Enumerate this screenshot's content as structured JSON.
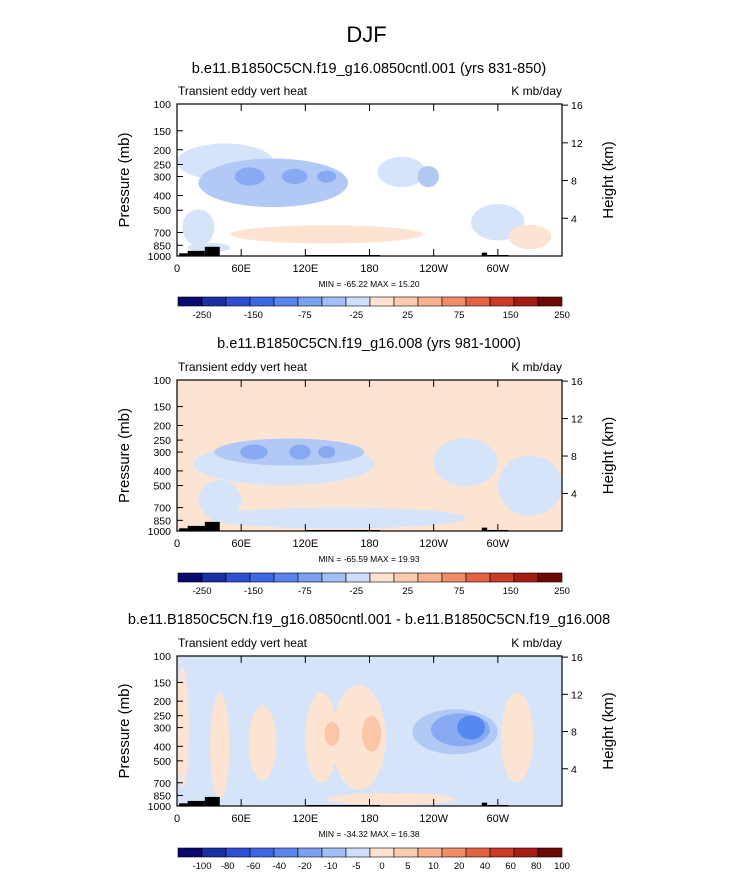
{
  "page_title": "DJF",
  "colors": {
    "lat_negative": [
      "#0a0a6e",
      "#1a33b5",
      "#3366e6",
      "#5588f0",
      "#88aaf2",
      "#b3c9f5",
      "#d6e4fa"
    ],
    "lat_positive": [
      "#fde4d2",
      "#fbc6a8",
      "#f59e7c",
      "#ea6e4e",
      "#d63c2a",
      "#a91c12",
      "#6e0a06"
    ],
    "land": "#000000"
  },
  "chart_data": [
    {
      "type": "heatmap",
      "title": "b.e11.B1850C5CN.f19_g16.0850cntl.001 (yrs 831-850)",
      "left_label": "Transient eddy vert heat",
      "right_label": "K mb/day",
      "ylabel": "Pressure (mb)",
      "ylabel_right": "Height (km)",
      "xticks": [
        "0",
        "60E",
        "120E",
        "180",
        "120W",
        "60W"
      ],
      "yticks": [
        "100",
        "150",
        "200",
        "250",
        "300",
        "400",
        "500",
        "700",
        "850",
        "1000"
      ],
      "height_ticks": [
        "16",
        "12",
        "8",
        "4"
      ],
      "stats": "MIN = -65.22  MAX = 15.20",
      "colorbar": [
        "-250",
        "-150",
        "-75",
        "-25",
        "25",
        "75",
        "150",
        "250"
      ],
      "background_level": 0,
      "blobs": [
        {
          "lon": 45,
          "p": 240,
          "w": 90,
          "hp": 1.2,
          "level": -1
        },
        {
          "lon": 90,
          "p": 330,
          "w": 140,
          "hp": 1.6,
          "level": -2
        },
        {
          "lon": 68,
          "p": 300,
          "w": 28,
          "hp": 0.6,
          "level": -3
        },
        {
          "lon": 110,
          "p": 300,
          "w": 24,
          "hp": 0.5,
          "level": -3
        },
        {
          "lon": 140,
          "p": 300,
          "w": 18,
          "hp": 0.4,
          "level": -3
        },
        {
          "lon": 210,
          "p": 280,
          "w": 45,
          "hp": 1.0,
          "level": -1
        },
        {
          "lon": 235,
          "p": 300,
          "w": 20,
          "hp": 0.7,
          "level": -2
        },
        {
          "lon": 300,
          "p": 600,
          "w": 50,
          "hp": 1.2,
          "level": -1
        },
        {
          "lon": 20,
          "p": 650,
          "w": 30,
          "hp": 1.2,
          "level": -1
        },
        {
          "lon": 140,
          "p": 720,
          "w": 180,
          "hp": 0.6,
          "level": 1
        },
        {
          "lon": 330,
          "p": 750,
          "w": 40,
          "hp": 0.8,
          "level": 1
        },
        {
          "lon": 30,
          "p": 880,
          "w": 40,
          "hp": 0.3,
          "level": -1
        }
      ],
      "land": [
        {
          "lon0": 2,
          "lon1": 10,
          "p0": 960
        },
        {
          "lon0": 10,
          "lon1": 26,
          "p0": 925
        },
        {
          "lon0": 26,
          "lon1": 40,
          "p0": 870
        },
        {
          "lon0": 120,
          "lon1": 190,
          "p0": 985
        },
        {
          "lon0": 285,
          "lon1": 290,
          "p0": 950
        },
        {
          "lon0": 290,
          "lon1": 310,
          "p0": 985
        }
      ]
    },
    {
      "type": "heatmap",
      "title": "b.e11.B1850C5CN.f19_g16.008 (yrs 981-1000)",
      "left_label": "Transient eddy vert heat",
      "right_label": "K mb/day",
      "ylabel": "Pressure (mb)",
      "ylabel_right": "Height (km)",
      "xticks": [
        "0",
        "60E",
        "120E",
        "180",
        "120W",
        "60W"
      ],
      "yticks": [
        "100",
        "150",
        "200",
        "250",
        "300",
        "400",
        "500",
        "700",
        "850",
        "1000"
      ],
      "height_ticks": [
        "16",
        "12",
        "8",
        "4"
      ],
      "stats": "MIN = -65.59  MAX = 19.93",
      "colorbar": [
        "-250",
        "-150",
        "-75",
        "-25",
        "25",
        "75",
        "150",
        "250"
      ],
      "background_level": 1,
      "blobs": [
        {
          "lon": 100,
          "p": 360,
          "w": 170,
          "hp": 1.4,
          "level": -1
        },
        {
          "lon": 105,
          "p": 300,
          "w": 140,
          "hp": 0.9,
          "level": -2
        },
        {
          "lon": 72,
          "p": 300,
          "w": 26,
          "hp": 0.5,
          "level": -3
        },
        {
          "lon": 115,
          "p": 300,
          "w": 20,
          "hp": 0.5,
          "level": -3
        },
        {
          "lon": 140,
          "p": 300,
          "w": 16,
          "hp": 0.4,
          "level": -3
        },
        {
          "lon": 270,
          "p": 350,
          "w": 60,
          "hp": 1.6,
          "level": -1
        },
        {
          "lon": 330,
          "p": 500,
          "w": 60,
          "hp": 2.0,
          "level": -1
        },
        {
          "lon": 40,
          "p": 620,
          "w": 40,
          "hp": 1.3,
          "level": -1
        },
        {
          "lon": 150,
          "p": 820,
          "w": 240,
          "hp": 0.7,
          "level": -1
        }
      ],
      "land": [
        {
          "lon0": 2,
          "lon1": 10,
          "p0": 960
        },
        {
          "lon0": 10,
          "lon1": 26,
          "p0": 925
        },
        {
          "lon0": 26,
          "lon1": 40,
          "p0": 870
        },
        {
          "lon0": 120,
          "lon1": 190,
          "p0": 985
        },
        {
          "lon0": 285,
          "lon1": 290,
          "p0": 950
        },
        {
          "lon0": 290,
          "lon1": 310,
          "p0": 985
        }
      ]
    },
    {
      "type": "heatmap",
      "title": "b.e11.B1850C5CN.f19_g16.0850cntl.001 - b.e11.B1850C5CN.f19_g16.008",
      "left_label": "Transient eddy vert heat",
      "right_label": "K mb/day",
      "ylabel": "Pressure (mb)",
      "ylabel_right": "Height (km)",
      "xticks": [
        "0",
        "60E",
        "120E",
        "180",
        "120W",
        "60W"
      ],
      "yticks": [
        "100",
        "150",
        "200",
        "250",
        "300",
        "400",
        "500",
        "700",
        "850",
        "1000"
      ],
      "height_ticks": [
        "16",
        "12",
        "8",
        "4"
      ],
      "stats": "MIN = -34.32  MAX = 16.38",
      "colorbar": [
        "-100",
        "-80",
        "-60",
        "-40",
        "-20",
        "-10",
        "-5",
        "0",
        "5",
        "10",
        "20",
        "40",
        "60",
        "80",
        "100"
      ],
      "background_level": -1,
      "blobs": [
        {
          "lon": 5,
          "p": 300,
          "w": 12,
          "hp": 4.0,
          "level": 1
        },
        {
          "lon": 40,
          "p": 400,
          "w": 18,
          "hp": 3.5,
          "level": 1
        },
        {
          "lon": 80,
          "p": 380,
          "w": 26,
          "hp": 2.5,
          "level": 1
        },
        {
          "lon": 135,
          "p": 350,
          "w": 30,
          "hp": 3.0,
          "level": 1
        },
        {
          "lon": 170,
          "p": 350,
          "w": 50,
          "hp": 3.5,
          "level": 1
        },
        {
          "lon": 182,
          "p": 330,
          "w": 18,
          "hp": 1.2,
          "level": 2
        },
        {
          "lon": 145,
          "p": 330,
          "w": 14,
          "hp": 0.8,
          "level": 2
        },
        {
          "lon": 318,
          "p": 350,
          "w": 30,
          "hp": 3.0,
          "level": 1
        },
        {
          "lon": 260,
          "p": 320,
          "w": 80,
          "hp": 1.5,
          "level": -2
        },
        {
          "lon": 265,
          "p": 310,
          "w": 55,
          "hp": 1.1,
          "level": -3
        },
        {
          "lon": 275,
          "p": 300,
          "w": 26,
          "hp": 0.8,
          "level": -4
        },
        {
          "lon": 200,
          "p": 900,
          "w": 120,
          "hp": 0.4,
          "level": 1
        }
      ],
      "land": [
        {
          "lon0": 2,
          "lon1": 10,
          "p0": 960
        },
        {
          "lon0": 10,
          "lon1": 26,
          "p0": 925
        },
        {
          "lon0": 26,
          "lon1": 40,
          "p0": 870
        },
        {
          "lon0": 120,
          "lon1": 190,
          "p0": 985
        },
        {
          "lon0": 285,
          "lon1": 290,
          "p0": 950
        },
        {
          "lon0": 290,
          "lon1": 310,
          "p0": 985
        }
      ]
    }
  ]
}
